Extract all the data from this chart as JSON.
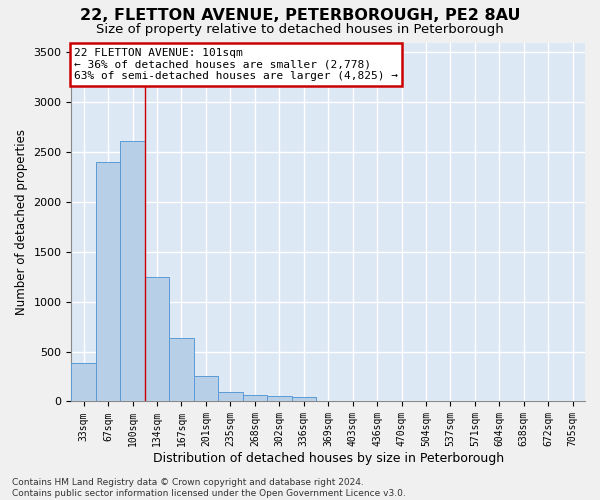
{
  "title1": "22, FLETTON AVENUE, PETERBOROUGH, PE2 8AU",
  "title2": "Size of property relative to detached houses in Peterborough",
  "xlabel": "Distribution of detached houses by size in Peterborough",
  "ylabel": "Number of detached properties",
  "categories": [
    "33sqm",
    "67sqm",
    "100sqm",
    "134sqm",
    "167sqm",
    "201sqm",
    "235sqm",
    "268sqm",
    "302sqm",
    "336sqm",
    "369sqm",
    "403sqm",
    "436sqm",
    "470sqm",
    "504sqm",
    "537sqm",
    "571sqm",
    "604sqm",
    "638sqm",
    "672sqm",
    "705sqm"
  ],
  "values": [
    390,
    2400,
    2610,
    1250,
    640,
    260,
    95,
    60,
    55,
    40,
    0,
    0,
    0,
    0,
    0,
    0,
    0,
    0,
    0,
    0,
    0
  ],
  "bar_color": "#b8cfe8",
  "bar_edge_color": "#5b9bd5",
  "background_color": "#dde8f5",
  "grid_color": "#ffffff",
  "red_line_x": 2.5,
  "annotation_line1": "22 FLETTON AVENUE: 101sqm",
  "annotation_line2": "← 36% of detached houses are smaller (2,778)",
  "annotation_line3": "63% of semi-detached houses are larger (4,825) →",
  "annotation_box_facecolor": "#ffffff",
  "annotation_box_edgecolor": "#cc0000",
  "footnote": "Contains HM Land Registry data © Crown copyright and database right 2024.\nContains public sector information licensed under the Open Government Licence v3.0.",
  "ylim": [
    0,
    3600
  ],
  "yticks": [
    0,
    500,
    1000,
    1500,
    2000,
    2500,
    3000,
    3500
  ],
  "fig_facecolor": "#f0f0f0",
  "title1_fontsize": 11.5,
  "title2_fontsize": 9.5,
  "xlabel_fontsize": 9,
  "ylabel_fontsize": 8.5,
  "tick_fontsize": 8,
  "xtick_fontsize": 7,
  "footnote_fontsize": 6.5,
  "ann_fontsize": 8
}
